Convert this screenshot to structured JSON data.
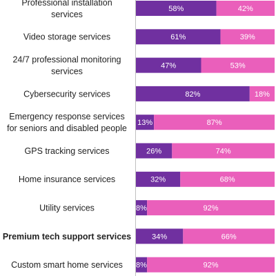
{
  "chart_data": {
    "type": "bar",
    "orientation": "horizontal",
    "stacked": true,
    "categories": [
      "Professional installation services",
      "Video storage services",
      "24/7 professional monitoring services",
      "Cybersecurity services",
      "Emergency response services for seniors and disabled people",
      "GPS tracking services",
      "Home insurance services",
      "Utility services",
      "Premium tech support services",
      "Custom smart home services"
    ],
    "category_lines": [
      [
        "Professional installation",
        "services"
      ],
      [
        "Video storage services"
      ],
      [
        "24/7 professional monitoring",
        "services"
      ],
      [
        "Cybersecurity services"
      ],
      [
        "Emergency response services",
        "for seniors and disabled people"
      ],
      [
        "GPS tracking services"
      ],
      [
        "Home insurance services"
      ],
      [
        "Utility services"
      ],
      [
        "Premium tech support services"
      ],
      [
        "Custom smart home services"
      ]
    ],
    "bold_categories": [
      "Premium tech support services"
    ],
    "series": [
      {
        "values": [
          58,
          61,
          47,
          82,
          13,
          26,
          32,
          8,
          34,
          8
        ],
        "color": "#7030a0"
      },
      {
        "values": [
          42,
          39,
          53,
          18,
          87,
          74,
          68,
          92,
          66,
          92
        ],
        "color": "#ea5fbb"
      }
    ],
    "value_suffix": "%",
    "xlim": [
      0,
      100
    ],
    "grid": false,
    "legend": "none"
  }
}
